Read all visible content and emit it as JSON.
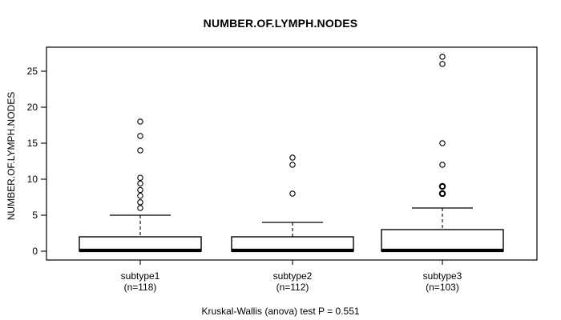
{
  "figure": {
    "title": "NUMBER.OF.LYMPH.NODES",
    "y_axis_label": "NUMBER.OF.LYMPH.NODES",
    "caption": "Kruskal-Wallis (anova) test P = 0.551"
  },
  "chart_data": {
    "type": "box",
    "title": "NUMBER.OF.LYMPH.NODES",
    "ylabel": "NUMBER.OF.LYMPH.NODES",
    "xlabel": "",
    "caption": "Kruskal-Wallis (anova) test P = 0.551",
    "y_ticks": [
      0,
      5,
      10,
      15,
      20,
      25
    ],
    "ylim": [
      -1.2,
      28.3
    ],
    "grid": false,
    "legend": "none",
    "box_orientation": "vertical",
    "groups": [
      {
        "label": "subtype1",
        "sublabel": "(n=118)",
        "n": 118,
        "median": 0,
        "q1": 0,
        "q3": 2,
        "whisker_low": 0,
        "whisker_high": 5,
        "outliers": [
          {
            "v": 6.0,
            "count": 1
          },
          {
            "v": 6.8,
            "count": 1
          },
          {
            "v": 7.7,
            "count": 1
          },
          {
            "v": 8.5,
            "count": 1
          },
          {
            "v": 9.4,
            "count": 1
          },
          {
            "v": 10.2,
            "count": 1
          },
          {
            "v": 14,
            "count": 1
          },
          {
            "v": 16,
            "count": 1
          },
          {
            "v": 18,
            "count": 1
          }
        ]
      },
      {
        "label": "subtype2",
        "sublabel": "(n=112)",
        "n": 112,
        "median": 0,
        "q1": 0,
        "q3": 2,
        "whisker_low": 0,
        "whisker_high": 4,
        "outliers": [
          {
            "v": 8,
            "count": 1
          },
          {
            "v": 12,
            "count": 1
          },
          {
            "v": 13,
            "count": 1
          }
        ]
      },
      {
        "label": "subtype3",
        "sublabel": "(n=103)",
        "n": 103,
        "median": 0,
        "q1": 0,
        "q3": 3,
        "whisker_low": 0,
        "whisker_high": 6,
        "outliers": [
          {
            "v": 8,
            "count": 2
          },
          {
            "v": 9,
            "count": 2
          },
          {
            "v": 12,
            "count": 1
          },
          {
            "v": 15,
            "count": 1
          },
          {
            "v": 26,
            "count": 1
          },
          {
            "v": 27,
            "count": 1
          }
        ]
      }
    ],
    "colors": {
      "stroke": "#000000",
      "box_fill": "#ffffff",
      "background": "#ffffff",
      "text": "#000000"
    }
  }
}
